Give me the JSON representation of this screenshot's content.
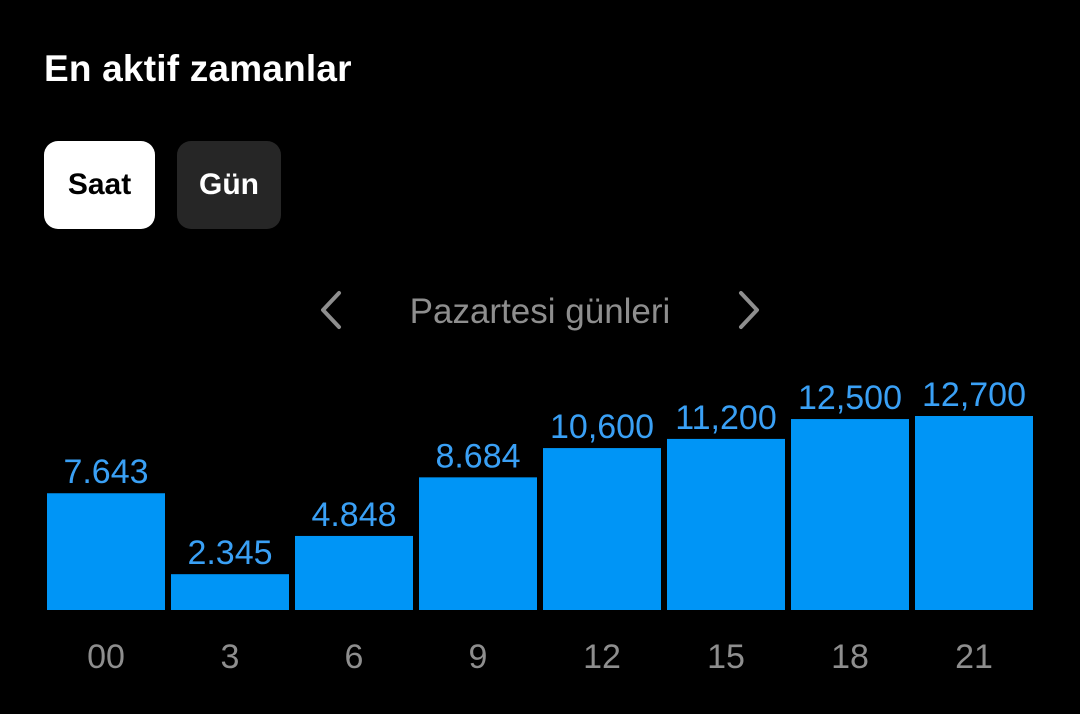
{
  "header": {
    "title": "En aktif zamanlar"
  },
  "toggle": {
    "options": [
      {
        "label": "Saat",
        "selected": true
      },
      {
        "label": "Gün",
        "selected": false
      }
    ]
  },
  "navigator": {
    "prev_icon": "chevron-left-icon",
    "label": "Pazartesi günleri",
    "next_icon": "chevron-right-icon"
  },
  "colors": {
    "background": "#000000",
    "bar": "#0095f6",
    "bar_value_text": "#3aa0f5",
    "muted_text": "#8e8e8e",
    "active_toggle_bg": "#ffffff",
    "inactive_toggle_bg": "#262626"
  },
  "chart_data": {
    "type": "bar",
    "categories": [
      "00",
      "3",
      "6",
      "9",
      "12",
      "15",
      "18",
      "21"
    ],
    "values": [
      7643,
      2345,
      4848,
      8684,
      10600,
      11200,
      12500,
      12700
    ],
    "value_labels": [
      "7.643",
      "2.345",
      "4.848",
      "8.684",
      "10,600",
      "11,200",
      "12,500",
      "12,700"
    ],
    "title": "",
    "xlabel": "",
    "ylabel": "",
    "ylim": [
      0,
      12700
    ],
    "grid": false,
    "legend": "none"
  }
}
